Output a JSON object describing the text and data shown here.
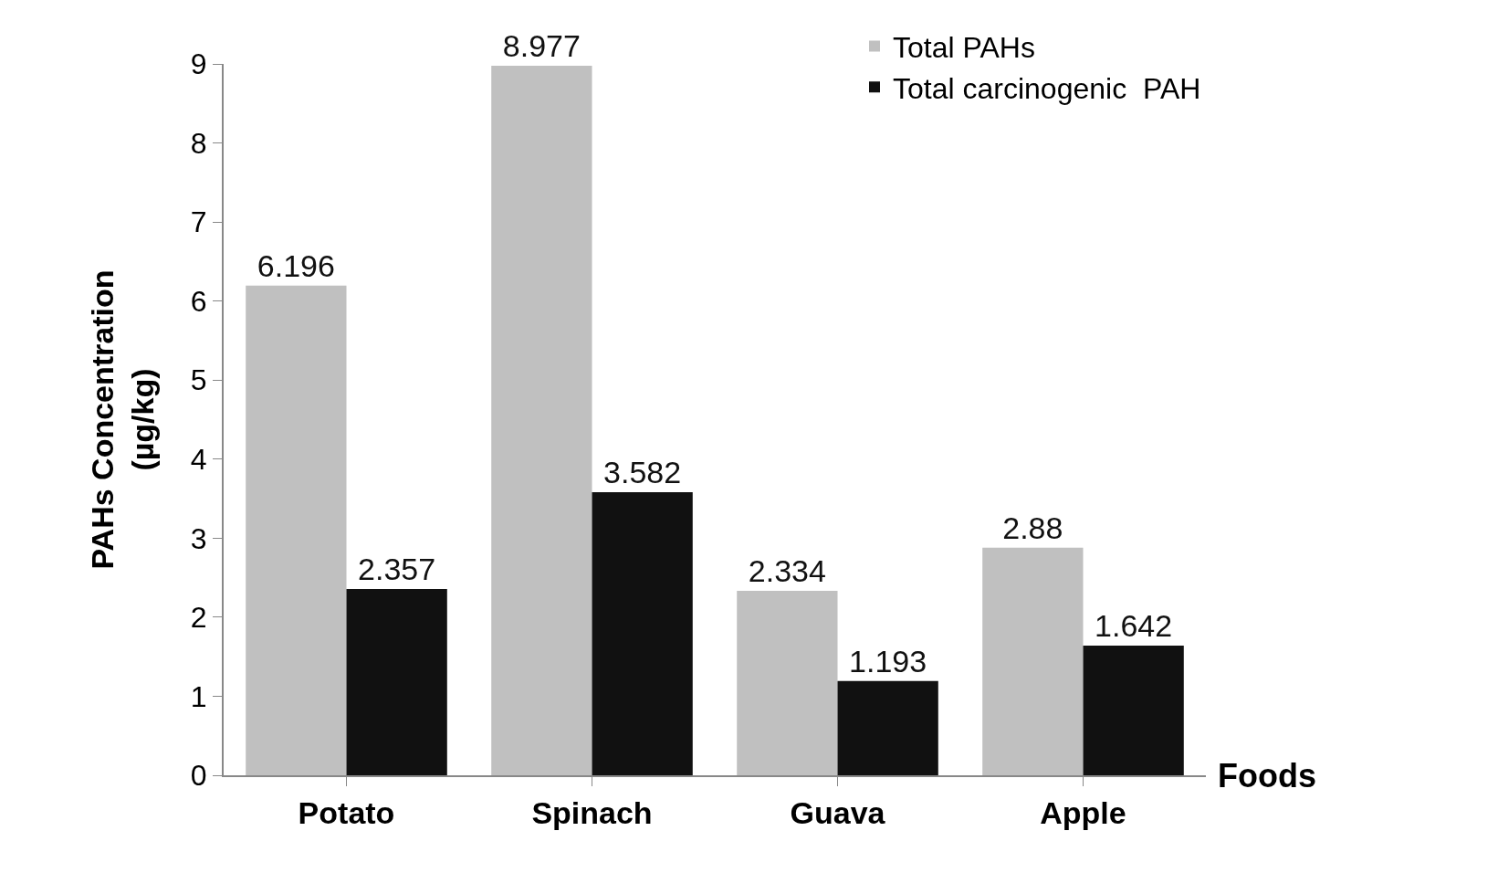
{
  "chart_data": {
    "type": "bar",
    "xlabel": "Foods",
    "ylabel": "PAHs Concentration\n(µg/kg)",
    "categories": [
      "Potato",
      "Spinach",
      "Guava",
      "Apple"
    ],
    "series": [
      {
        "name": "Total PAHs",
        "color": "#c0c0c0",
        "values": [
          6.196,
          8.977,
          2.334,
          2.88
        ]
      },
      {
        "name": "Total carcinogenic  PAH",
        "color": "#111111",
        "values": [
          2.357,
          3.582,
          1.193,
          1.642
        ]
      }
    ],
    "ylim": [
      0,
      9
    ],
    "yticks": [
      0,
      1,
      2,
      3,
      4,
      5,
      6,
      7,
      8,
      9
    ],
    "grid": false,
    "legend": "top right",
    "data_labels": true
  }
}
